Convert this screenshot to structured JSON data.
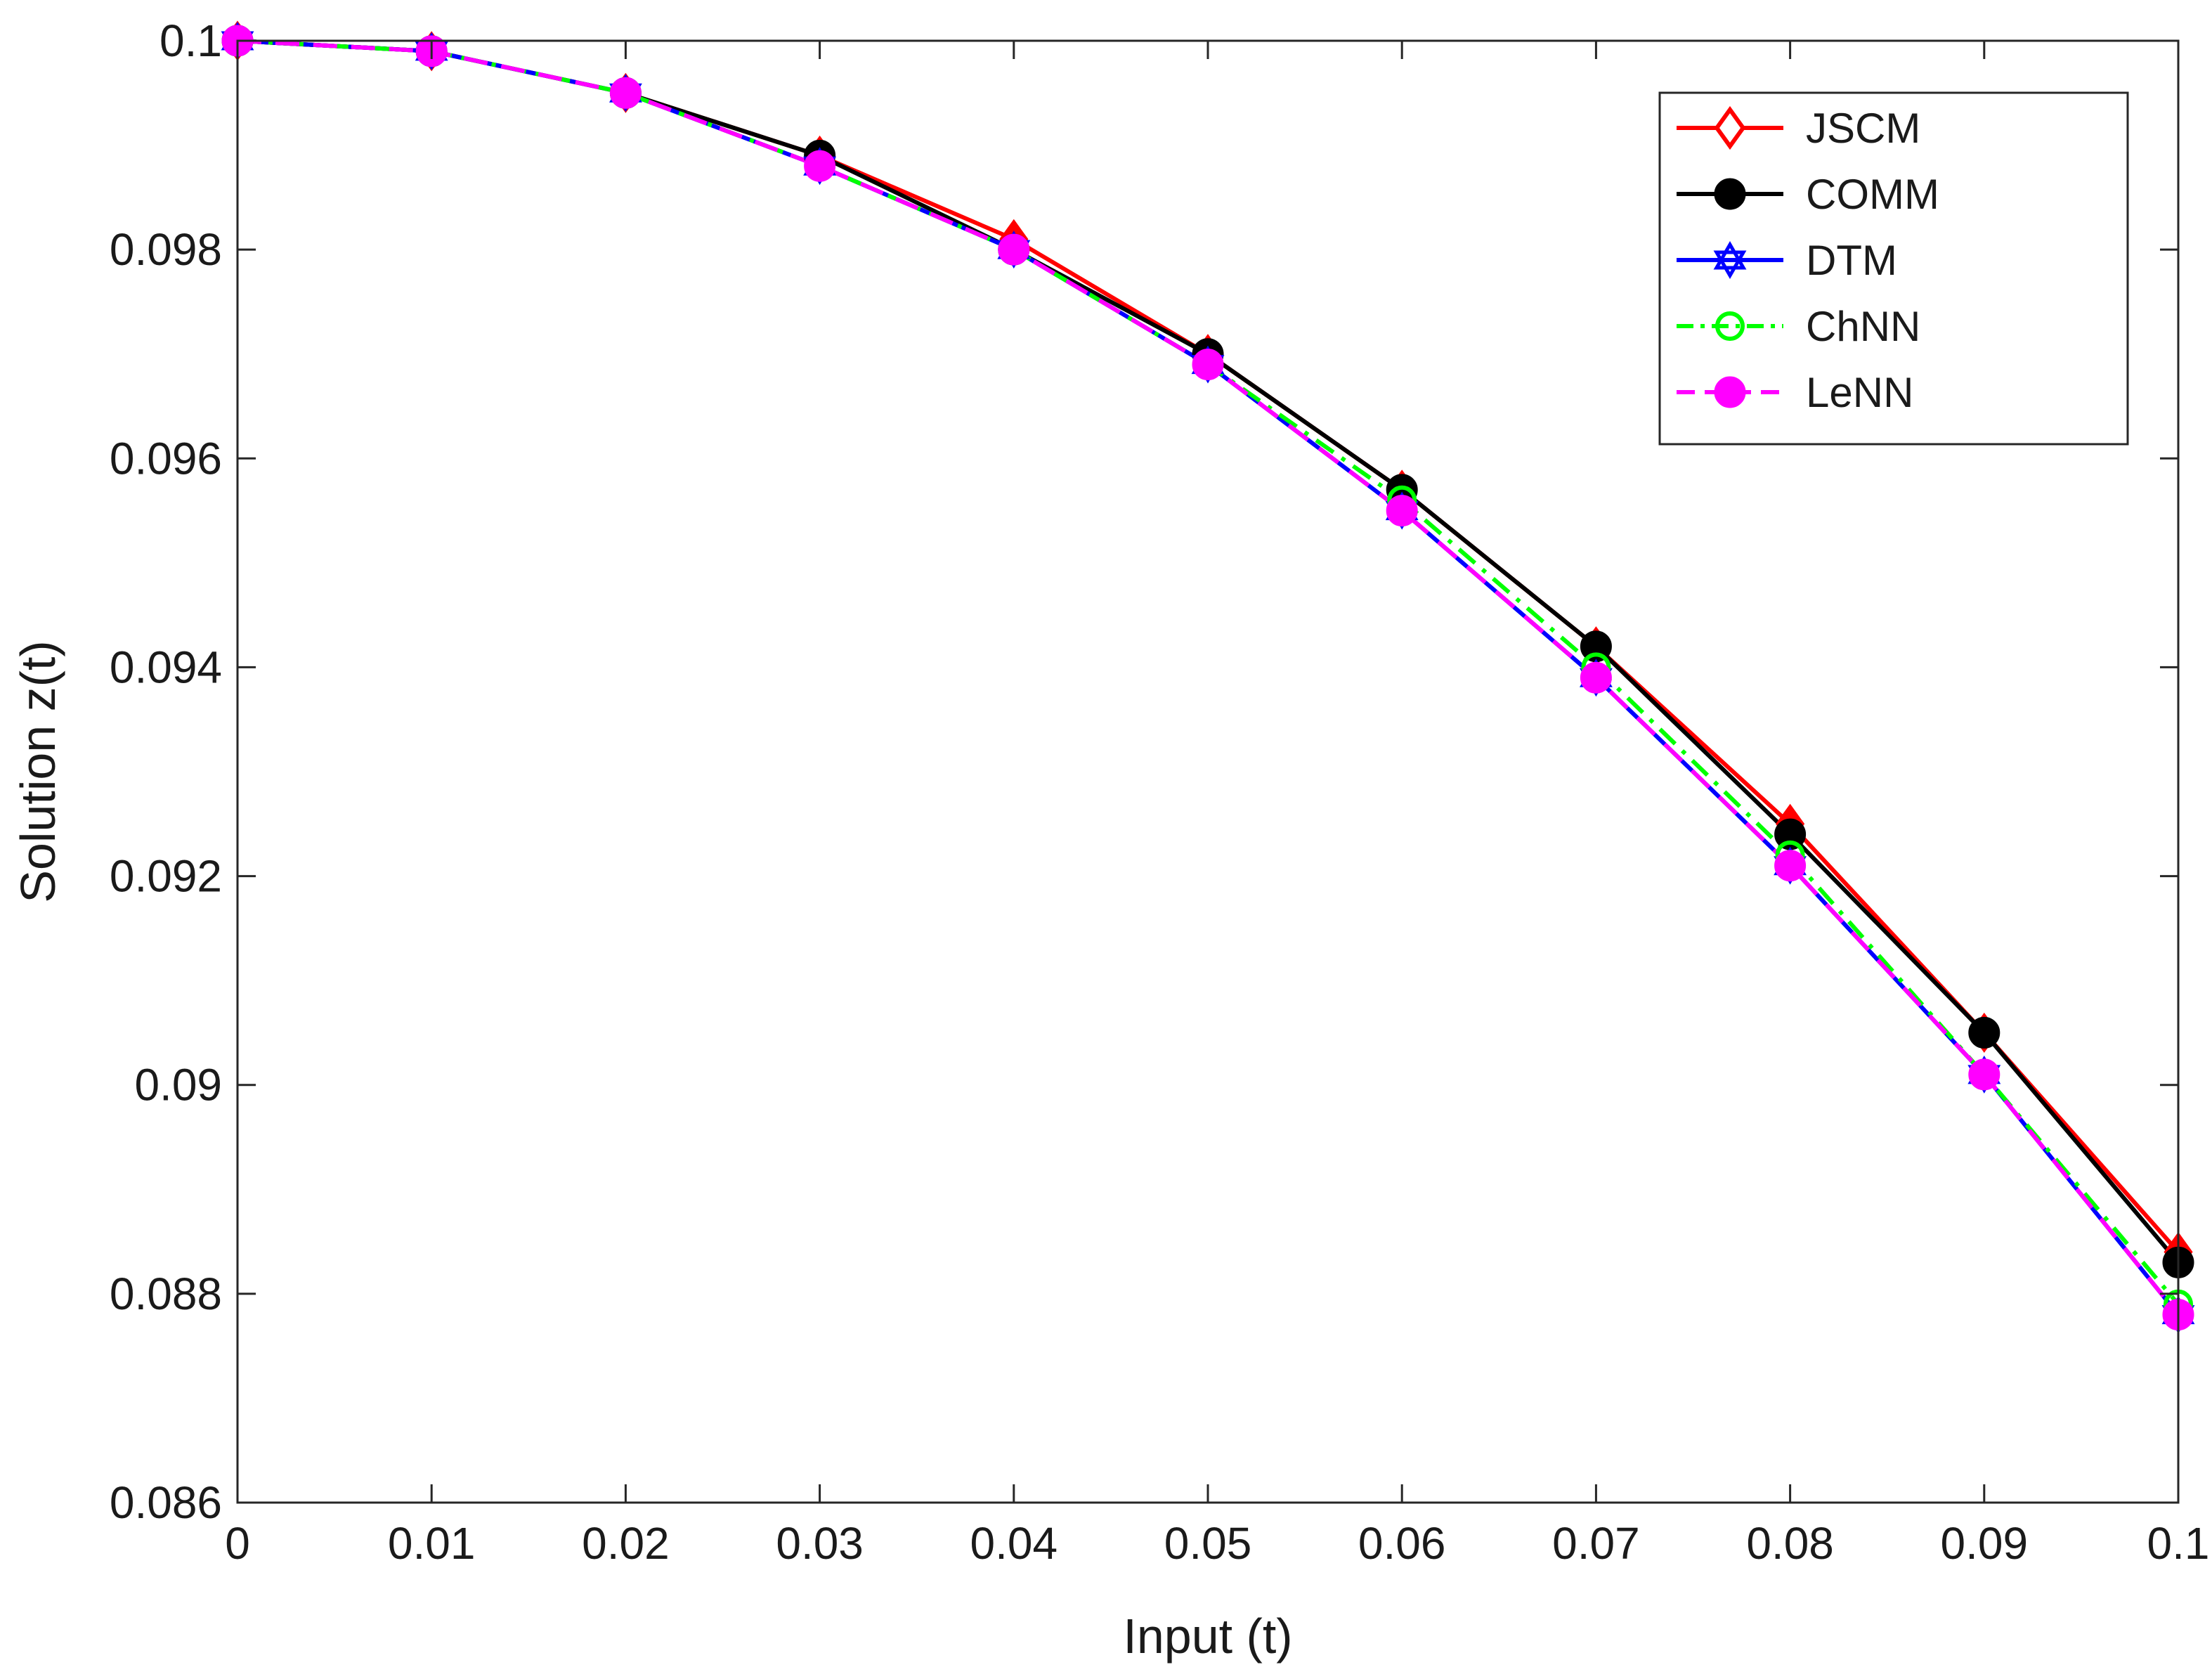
{
  "chart_data": {
    "type": "line",
    "title": "",
    "xlabel": "Input (t)",
    "ylabel": "Solution z(t)",
    "xlim": [
      0,
      0.1
    ],
    "ylim": [
      0.086,
      0.1
    ],
    "xticks": [
      0,
      0.01,
      0.02,
      0.03,
      0.04,
      0.05,
      0.06,
      0.07,
      0.08,
      0.09,
      0.1
    ],
    "xtick_labels": [
      "0",
      "0.01",
      "0.02",
      "0.03",
      "0.04",
      "0.05",
      "0.06",
      "0.07",
      "0.08",
      "0.09",
      "0.1"
    ],
    "yticks": [
      0.086,
      0.088,
      0.09,
      0.092,
      0.094,
      0.096,
      0.098,
      0.1
    ],
    "ytick_labels": [
      "0.086",
      "0.088",
      "0.09",
      "0.092",
      "0.094",
      "0.096",
      "0.098",
      "0.1"
    ],
    "grid": false,
    "legend_position": "top-right",
    "x": [
      0,
      0.01,
      0.02,
      0.03,
      0.04,
      0.05,
      0.06,
      0.07,
      0.08,
      0.09,
      0.1
    ],
    "series": [
      {
        "name": "JSCM",
        "color": "#ff0000",
        "marker": "diamond",
        "dash": "solid",
        "values": [
          0.1,
          0.0999,
          0.0995,
          0.0989,
          0.0981,
          0.097,
          0.0957,
          0.0942,
          0.0925,
          0.0905,
          0.0884
        ]
      },
      {
        "name": "COMM",
        "color": "#000000",
        "marker": "circle-filled",
        "dash": "solid",
        "values": [
          0.1,
          0.0999,
          0.0995,
          0.0989,
          0.098,
          0.097,
          0.0957,
          0.0942,
          0.0924,
          0.0905,
          0.0883
        ]
      },
      {
        "name": "DTM",
        "color": "#0000ff",
        "marker": "hexagram",
        "dash": "solid",
        "values": [
          0.1,
          0.0999,
          0.0995,
          0.0988,
          0.098,
          0.0969,
          0.0955,
          0.0939,
          0.0921,
          0.0901,
          0.0878
        ]
      },
      {
        "name": "ChNN",
        "color": "#00ff00",
        "marker": "circle-open",
        "dash": "dashdot",
        "values": [
          0.1,
          0.0999,
          0.0995,
          0.0988,
          0.098,
          0.0969,
          0.0956,
          0.094,
          0.0922,
          0.0901,
          0.0879
        ]
      },
      {
        "name": "LeNN",
        "color": "#ff00ff",
        "marker": "circle-filled",
        "dash": "dashed",
        "values": [
          0.1,
          0.0999,
          0.0995,
          0.0988,
          0.098,
          0.0969,
          0.0955,
          0.0939,
          0.0921,
          0.0901,
          0.0878
        ]
      }
    ]
  }
}
